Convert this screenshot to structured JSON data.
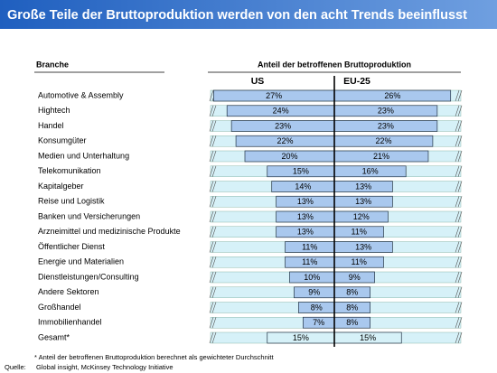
{
  "chart_data": {
    "type": "butterfly-bar",
    "title": "Große Teile der Bruttoproduktion werden von den acht Trends beeinflusst",
    "category_header": "Branche",
    "value_header": "Anteil der betroffenen Bruttoproduktion",
    "categories": [
      "Automotive & Assembly",
      "Hightech",
      "Handel",
      "Konsumgüter",
      "Medien und Unterhaltung",
      "Telekomunikation",
      "Kapitalgeber",
      "Reise und Logistik",
      "Banken und Versicherungen",
      "Arzneimittel und medizinische Produkte",
      "Öffentlicher Dienst",
      "Energie und Materialien",
      "Dienstleistungen/Consulting",
      "Andere Sektoren",
      "Großhandel",
      "Immobilienhandel",
      "Gesamt*"
    ],
    "series": [
      {
        "name": "US",
        "color": "#a9c8ee",
        "values": [
          27,
          24,
          23,
          22,
          20,
          15,
          14,
          13,
          13,
          13,
          11,
          11,
          10,
          9,
          8,
          7,
          15
        ],
        "value_labels": [
          "27%",
          "24%",
          "23%",
          "22%",
          "20%",
          "15%",
          "14%",
          "13%",
          "13%",
          "13%",
          "11%",
          "11%",
          "10%",
          "9%",
          "8%",
          "7%",
          "15%"
        ]
      },
      {
        "name": "EU-25",
        "color": "#a9c8ee",
        "values": [
          26,
          23,
          23,
          22,
          21,
          16,
          13,
          13,
          12,
          11,
          13,
          11,
          9,
          8,
          8,
          8,
          15
        ],
        "value_labels": [
          "26%",
          "23%",
          "23%",
          "22%",
          "21%",
          "16%",
          "13%",
          "13%",
          "12%",
          "11%",
          "13%",
          "11%",
          "9%",
          "8%",
          "8%",
          "8%",
          "15%"
        ]
      }
    ],
    "footnote": "* Anteil der betroffenen Bruttoproduktion berechnet als gewichteter Durchschnitt",
    "source_label": "Quelle:",
    "source": "Global insight, McKinsey Technology Initiative"
  }
}
